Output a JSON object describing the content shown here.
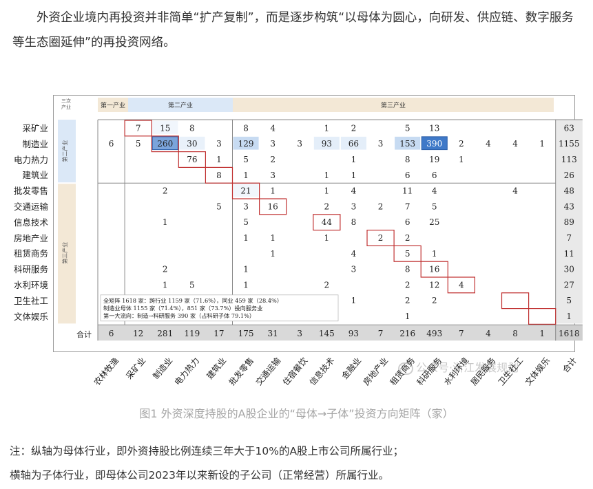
{
  "intro_paragraph": "外资企业境内再投资并非简单“扩产复制”，而是逐步构筑“以母体为圆心，向研发、供应链、数字服务等生态圈延伸”的再投资网络。",
  "figure": {
    "header_corner": [
      "三次",
      "产业"
    ],
    "header_sections": [
      "第一产业",
      "第二产业",
      "第三产业"
    ],
    "row_group_labels": [
      "第二产业",
      "第三产业"
    ],
    "row_labels": [
      "采矿业",
      "制造业",
      "电力热力",
      "建筑业",
      "批发零售",
      "交通运输",
      "信息技术",
      "房地产业",
      "租赁商务",
      "科研服务",
      "水利环境",
      "卫生社工",
      "文体娱乐"
    ],
    "col_labels": [
      "农林牧渔",
      "采矿业",
      "制造业",
      "电力热力",
      "建筑业",
      "批发零售",
      "交通运输",
      "住宿餐饮",
      "信息技术",
      "金融业",
      "房地产业",
      "租赁商务",
      "科研服务",
      "水利环境",
      "居民服务",
      "卫生社工",
      "文体娱乐",
      "合计"
    ],
    "matrix": [
      [
        "",
        "7",
        "15",
        "8",
        "",
        "8",
        "4",
        "",
        "1",
        "2",
        "",
        "5",
        "13",
        "",
        "",
        "",
        "",
        "63"
      ],
      [
        "6",
        "5",
        "260",
        "30",
        "3",
        "129",
        "3",
        "3",
        "93",
        "66",
        "3",
        "153",
        "390",
        "2",
        "4",
        "4",
        "1",
        "1155"
      ],
      [
        "",
        "",
        "",
        "76",
        "1",
        "5",
        "2",
        "",
        "",
        "1",
        "",
        "8",
        "19",
        "1",
        "",
        "",
        "",
        "113"
      ],
      [
        "",
        "",
        "",
        "",
        "8",
        "1",
        "3",
        "",
        "1",
        "1",
        "",
        "6",
        "6",
        "",
        "",
        "",
        "",
        "26"
      ],
      [
        "",
        "",
        "2",
        "",
        "",
        "21",
        "1",
        "",
        "1",
        "4",
        "",
        "11",
        "4",
        "",
        "",
        "4",
        "",
        "48"
      ],
      [
        "",
        "",
        "",
        "",
        "5",
        "3",
        "16",
        "",
        "2",
        "3",
        "2",
        "7",
        "5",
        "",
        "",
        "",
        "",
        "43"
      ],
      [
        "",
        "",
        "1",
        "",
        "",
        "5",
        "",
        "",
        "44",
        "8",
        "",
        "6",
        "25",
        "",
        "",
        "",
        "",
        "89"
      ],
      [
        "",
        "",
        "",
        "",
        "",
        "1",
        "1",
        "",
        "1",
        "",
        "2",
        "2",
        "",
        "",
        "",
        "",
        "",
        "7"
      ],
      [
        "",
        "",
        "",
        "",
        "",
        "",
        "1",
        "",
        "",
        "4",
        "",
        "5",
        "1",
        "",
        "",
        "",
        "",
        "11"
      ],
      [
        "",
        "",
        "2",
        "",
        "",
        "1",
        "",
        "",
        "",
        "3",
        "",
        "8",
        "16",
        "",
        "",
        "",
        "",
        "30"
      ],
      [
        "",
        "",
        "1",
        "5",
        "",
        "1",
        "",
        "",
        "2",
        "",
        "",
        "2",
        "12",
        "4",
        "",
        "",
        "",
        "27"
      ],
      [
        "",
        "",
        "",
        "",
        "",
        "",
        "",
        "",
        "",
        "1",
        "",
        "2",
        "2",
        "",
        "",
        "",
        "",
        "5"
      ],
      [
        "",
        "",
        "",
        "",
        "",
        "",
        "",
        "",
        "",
        "",
        "",
        "1",
        "",
        "",
        "",
        "",
        "",
        "1"
      ]
    ],
    "total_label": "合计",
    "total_row": [
      "6",
      "12",
      "281",
      "119",
      "17",
      "175",
      "31",
      "3",
      "145",
      "93",
      "7",
      "216",
      "493",
      "7",
      "4",
      "8",
      "1",
      "1618"
    ],
    "summary_lines": [
      "全矩阵 1618 家：跨行业 1159 家（71.6%），同业 459 家（28.4%）",
      "制造业母体 1155 家（71.4%），851 家（73.7%）投向服务业",
      "第一大流向：制造→科研服务 390 家（占科研子体 79.1%）"
    ]
  },
  "caption": "图1  外资深度持股的A股企业的“母体→子体”投资方向矩阵（家）",
  "watermark": "公众号·浙江发展规划",
  "notes": [
    "注：纵轴为母体行业，即外资持股比例连续三年大于10%的A股上市公司所属行业；",
    "横轴为子体行业，即母体公司2023年以来新设的子公司（正常经营）所属行业。"
  ],
  "colors": {
    "header_tan": "#f3e8d6",
    "header_blue": "#dbe8f7",
    "total_gray": "#cfcfcf",
    "highlight_red": "#c03030",
    "cell_blue_dark": "#3f79c8"
  }
}
